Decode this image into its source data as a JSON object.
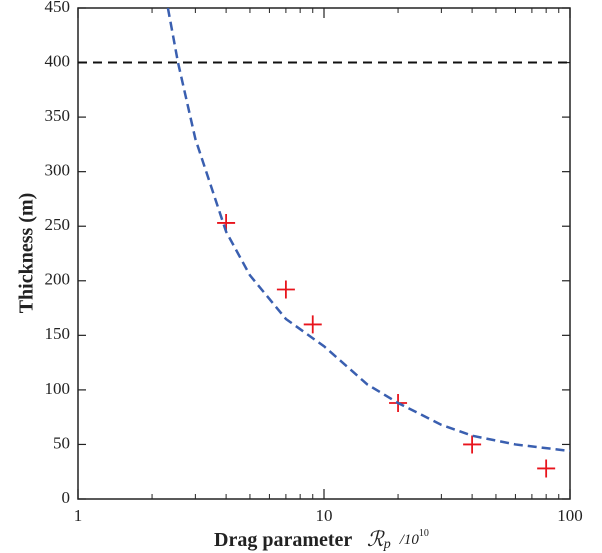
{
  "chart_data": {
    "type": "scatter",
    "ylabel": "Thickness (m)",
    "xlabel": "Drag parameter",
    "xlabel_math": {
      "symbol": "ℛ",
      "subscript": "p",
      "divisor": "/10",
      "exponent": "10"
    },
    "xscale": "log",
    "xlim": [
      1,
      100
    ],
    "xticks": [
      1,
      10,
      100
    ],
    "xminorticks": [
      2,
      3,
      4,
      5,
      6,
      7,
      8,
      9,
      20,
      30,
      40,
      50,
      60,
      70,
      80,
      90
    ],
    "ylim": [
      0,
      450
    ],
    "yticks": [
      0,
      50,
      100,
      150,
      200,
      250,
      300,
      350,
      400,
      450
    ],
    "hlines": [
      {
        "y": 400,
        "color": "#111111"
      }
    ],
    "series": [
      {
        "type": "scatter",
        "color": "#e8141c",
        "x": [
          4,
          7,
          9,
          20,
          40,
          80
        ],
        "values": [
          253,
          192,
          160,
          88,
          50,
          28
        ]
      },
      {
        "type": "line",
        "color": "#3a5fb0",
        "x": [
          2.32,
          2.55,
          3,
          4,
          5,
          7,
          10,
          15,
          20,
          30,
          40,
          60,
          100
        ],
        "values": [
          450,
          400,
          330,
          245,
          205,
          165,
          140,
          105,
          88,
          68,
          58,
          50,
          44
        ]
      }
    ]
  }
}
